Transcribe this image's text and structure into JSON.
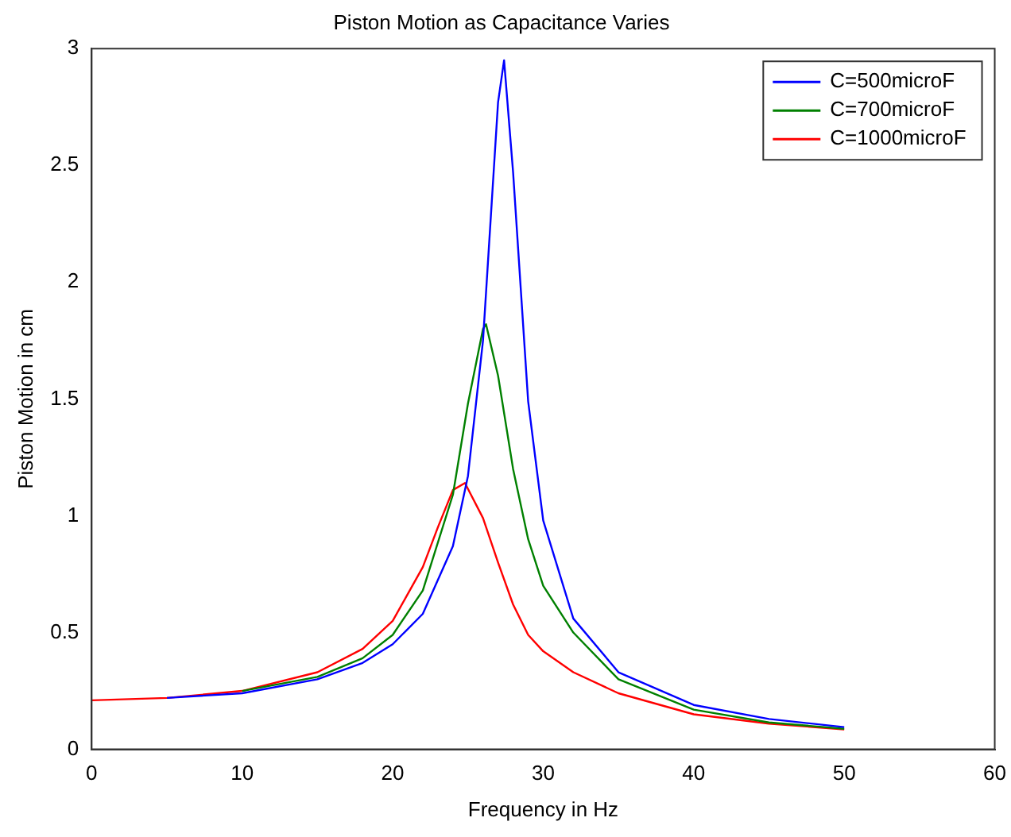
{
  "chart_data": {
    "type": "line",
    "title": "Piston Motion as Capacitance Varies",
    "xlabel": "Frequency in Hz",
    "ylabel": "Piston Motion in cm",
    "xlim": [
      0,
      60
    ],
    "xticks": [
      0,
      10,
      20,
      30,
      40,
      50,
      60
    ],
    "ylim": [
      0,
      3
    ],
    "yticks": [
      0,
      0.5,
      1,
      1.5,
      2,
      2.5,
      3
    ],
    "grid": false,
    "legend": "top right",
    "marker": "none",
    "line_style": "solid",
    "series": [
      {
        "name": "C=500microF",
        "color": "#0000ff",
        "x": [
          5,
          10,
          15,
          18,
          20,
          22,
          24,
          25,
          26,
          27,
          27.4,
          28,
          29,
          30,
          32,
          35,
          40,
          45,
          50
        ],
        "values": [
          0.22,
          0.24,
          0.3,
          0.37,
          0.45,
          0.58,
          0.87,
          1.17,
          1.75,
          2.77,
          2.95,
          2.47,
          1.49,
          0.98,
          0.56,
          0.33,
          0.19,
          0.13,
          0.095
        ]
      },
      {
        "name": "C=700microF",
        "color": "#008000",
        "x": [
          10,
          15,
          18,
          20,
          22,
          24,
          25,
          26,
          26.2,
          27,
          28,
          29,
          30,
          32,
          35,
          40,
          45,
          50
        ],
        "values": [
          0.25,
          0.31,
          0.39,
          0.49,
          0.68,
          1.09,
          1.48,
          1.8,
          1.82,
          1.6,
          1.2,
          0.9,
          0.7,
          0.5,
          0.3,
          0.17,
          0.115,
          0.088
        ]
      },
      {
        "name": "C=1000microF",
        "color": "#ff0000",
        "x": [
          0,
          5,
          10,
          15,
          18,
          20,
          22,
          23,
          24,
          24.8,
          26,
          27,
          28,
          29,
          30,
          32,
          35,
          40,
          45,
          50
        ],
        "values": [
          0.21,
          0.22,
          0.25,
          0.33,
          0.43,
          0.55,
          0.78,
          0.95,
          1.11,
          1.14,
          0.99,
          0.8,
          0.62,
          0.49,
          0.42,
          0.33,
          0.24,
          0.15,
          0.11,
          0.085
        ]
      }
    ]
  }
}
